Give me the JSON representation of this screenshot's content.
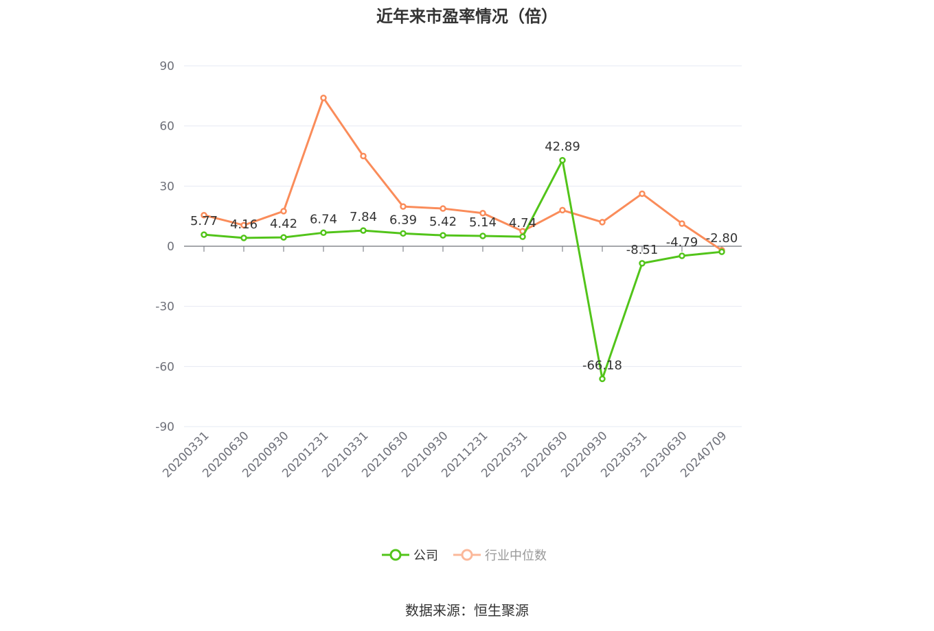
{
  "title": "近年来市盈率情况（倍）",
  "source": "数据来源：恒生聚源",
  "colors": {
    "company": "#52c41a",
    "industry": "#fa8c5a",
    "grid": "#e6e8f3",
    "axis": "#6e7079",
    "text": "#333333",
    "tick": "#6e7079"
  },
  "chart_data": {
    "type": "line",
    "categories": [
      "20200331",
      "20200630",
      "20200930",
      "20201231",
      "20210331",
      "20210630",
      "20210930",
      "20211231",
      "20220331",
      "20220630",
      "20220930",
      "20230331",
      "20230630",
      "20240709"
    ],
    "ylim": [
      -90,
      90
    ],
    "yticks": [
      90,
      60,
      30,
      0,
      -30,
      -60,
      -90
    ],
    "grid": true,
    "legend_position": "bottom",
    "series": [
      {
        "name": "公司",
        "color": "#52c41a",
        "values": [
          5.77,
          4.16,
          4.42,
          6.74,
          7.84,
          6.39,
          5.42,
          5.14,
          4.74,
          42.89,
          -66.18,
          -8.51,
          -4.79,
          -2.8
        ],
        "labels": [
          "5.77",
          "4.16",
          "4.42",
          "6.74",
          "7.84",
          "6.39",
          "5.42",
          "5.14",
          "4.74",
          "42.89",
          "-66.18",
          "-8.51",
          "-4.79",
          "-2.80"
        ]
      },
      {
        "name": "行业中位数",
        "color": "#fa8c5a",
        "values": [
          15.5,
          10.5,
          17.5,
          74.0,
          45.0,
          19.8,
          18.8,
          16.5,
          7.5,
          18.0,
          12.0,
          26.2,
          11.3,
          -2.0
        ]
      }
    ]
  }
}
